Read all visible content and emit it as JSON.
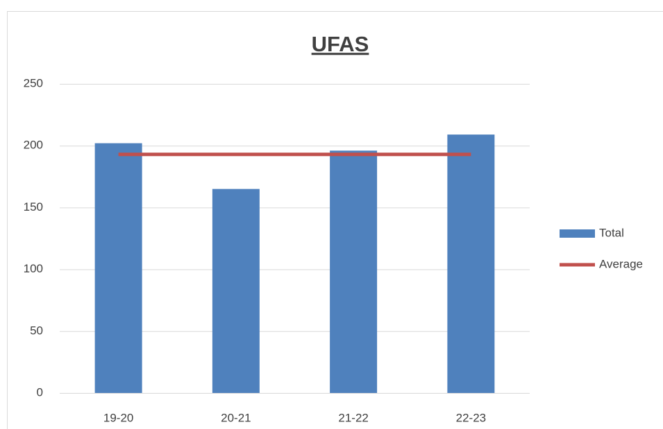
{
  "chart_data": {
    "type": "bar",
    "title": "UFAS",
    "categories": [
      "19-20",
      "20-21",
      "21-22",
      "22-23"
    ],
    "series": [
      {
        "name": "Total",
        "type": "bar",
        "color": "#4f81bd",
        "values": [
          202,
          165,
          196,
          209
        ]
      },
      {
        "name": "Average",
        "type": "line",
        "color": "#c0504d",
        "values": [
          193,
          193,
          193,
          193
        ]
      }
    ],
    "ylim": [
      0,
      250
    ],
    "yticks": [
      0,
      50,
      100,
      150,
      200,
      250
    ],
    "grid": true,
    "legend": "right"
  }
}
